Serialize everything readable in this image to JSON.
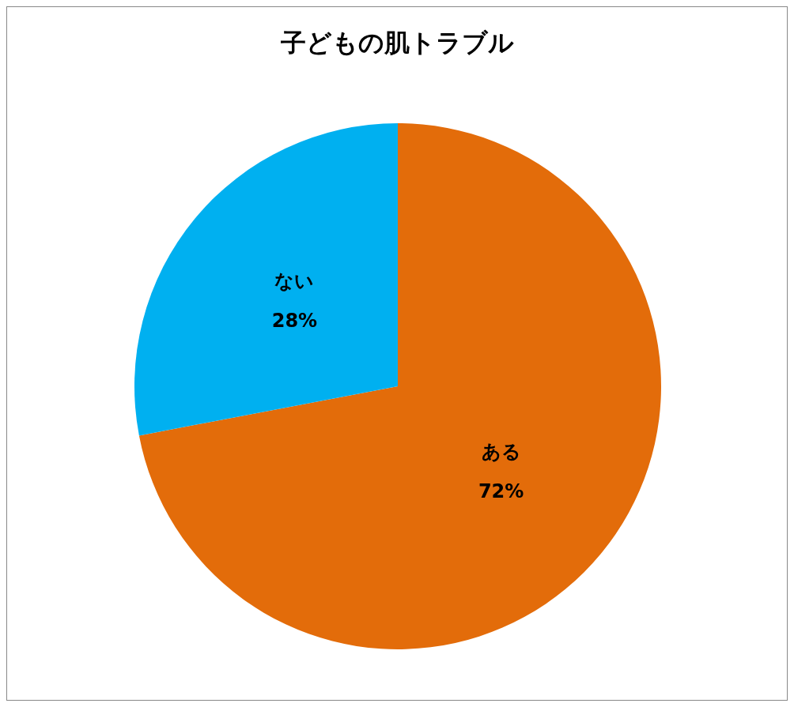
{
  "chart_data": {
    "type": "pie",
    "title": "子どもの肌トラブル",
    "categories": [
      "ある",
      "ない"
    ],
    "values": [
      72,
      28
    ],
    "value_labels": [
      "72%",
      "28%"
    ],
    "colors": [
      "#e36c0a",
      "#00b0f0"
    ],
    "legend": false
  }
}
